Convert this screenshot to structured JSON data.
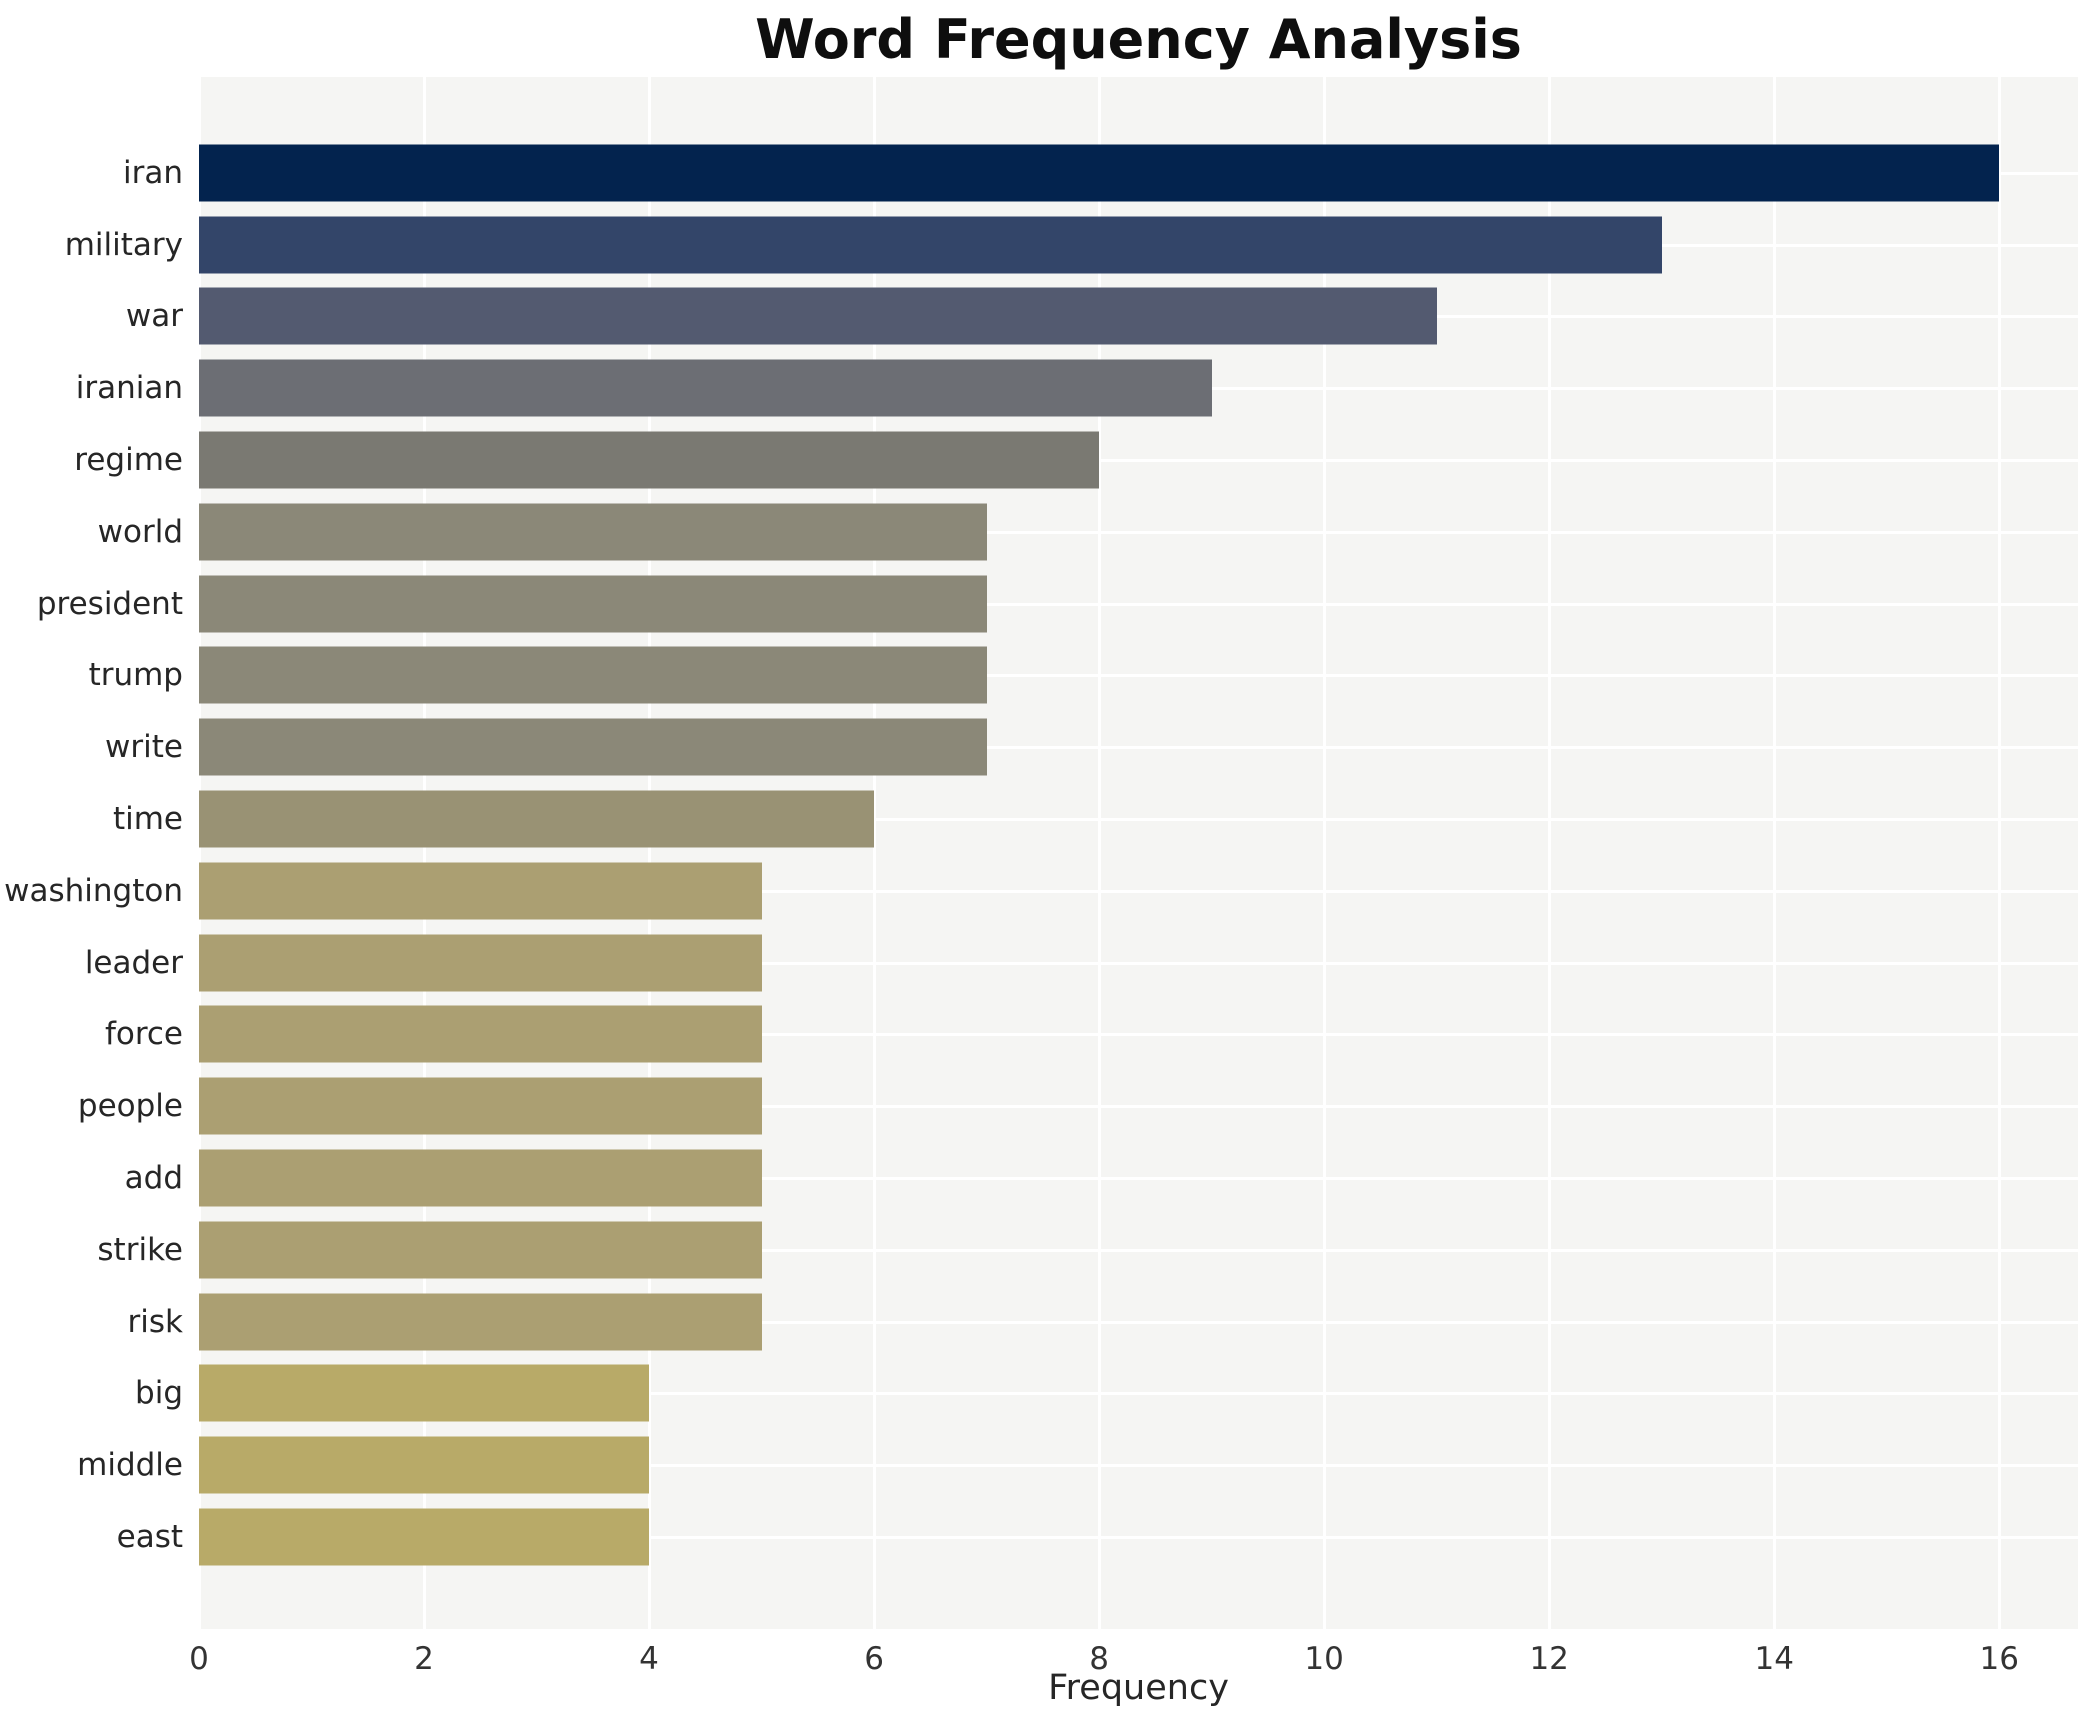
{
  "chart_data": {
    "type": "bar",
    "orientation": "horizontal",
    "title": "Word Frequency Analysis",
    "xlabel": "Frequency",
    "ylabel": "",
    "categories": [
      "iran",
      "military",
      "war",
      "iranian",
      "regime",
      "world",
      "president",
      "trump",
      "write",
      "time",
      "washington",
      "leader",
      "force",
      "people",
      "add",
      "strike",
      "risk",
      "big",
      "middle",
      "east"
    ],
    "values": [
      16,
      13,
      11,
      9,
      8,
      7,
      7,
      7,
      7,
      6,
      5,
      5,
      5,
      5,
      5,
      5,
      5,
      4,
      4,
      4
    ],
    "bar_colors": [
      "#03234e",
      "#334569",
      "#535a70",
      "#6c6e74",
      "#7a7972",
      "#8b8878",
      "#8b8878",
      "#8b8878",
      "#8b8878",
      "#999274",
      "#ab9f72",
      "#ab9f72",
      "#ab9f72",
      "#ab9f72",
      "#ab9f72",
      "#ab9f72",
      "#ab9f72",
      "#b8aa68",
      "#b8aa68",
      "#b8aa68"
    ],
    "x_ticks": [
      0,
      2,
      4,
      6,
      8,
      10,
      12,
      14,
      16
    ],
    "xlim": [
      0,
      16.7
    ],
    "grid": "both",
    "legend": "none",
    "plot_bg_color": "#f5f5f3",
    "grid_color": "#ffffff",
    "bar_height_fraction": 0.8
  }
}
